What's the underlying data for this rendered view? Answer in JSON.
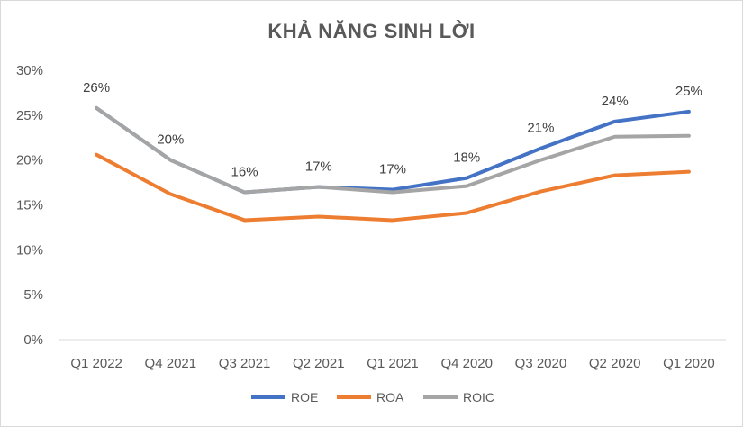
{
  "chart_data": {
    "type": "line",
    "title": "KHẢ NĂNG SINH LỜI",
    "categories": [
      "Q1 2022",
      "Q4 2021",
      "Q3 2021",
      "Q2 2021",
      "Q1 2021",
      "Q4 2020",
      "Q3 2020",
      "Q2 2020",
      "Q1 2020"
    ],
    "series": [
      {
        "name": "ROE",
        "color": "#4472C4",
        "values": [
          25.8,
          20.0,
          16.4,
          17.0,
          16.7,
          18.0,
          21.3,
          24.3,
          25.4
        ]
      },
      {
        "name": "ROA",
        "color": "#ED7D31",
        "values": [
          20.6,
          16.2,
          13.3,
          13.7,
          13.3,
          14.1,
          16.5,
          18.3,
          18.7
        ]
      },
      {
        "name": "ROIC",
        "color": "#A5A5A5",
        "values": [
          25.8,
          20.0,
          16.4,
          17.0,
          16.4,
          17.1,
          20.0,
          22.6,
          22.7
        ]
      }
    ],
    "data_labels": [
      "26%",
      "20%",
      "16%",
      "17%",
      "17%",
      "18%",
      "21%",
      "24%",
      "25%"
    ],
    "y_ticks": [
      "0%",
      "5%",
      "10%",
      "15%",
      "20%",
      "25%",
      "30%"
    ],
    "ylim": [
      0,
      30
    ],
    "xlabel": "",
    "ylabel": "",
    "grid": false,
    "legend_position": "bottom"
  }
}
